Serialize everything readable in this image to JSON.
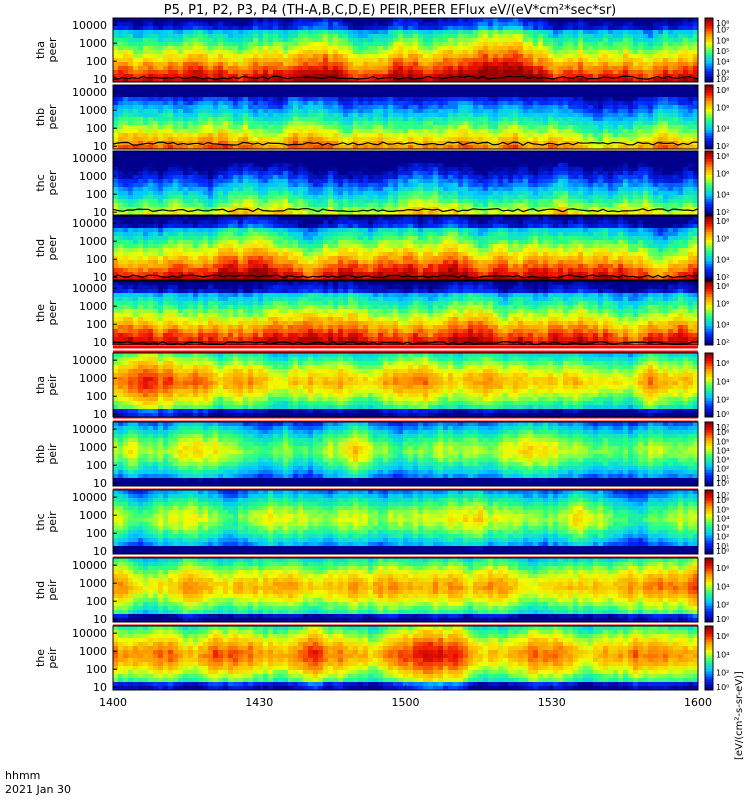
{
  "title": "P5, P1, P2, P3, P4 (TH-A,B,C,D,E) PEIR,PEER EFlux eV/(eV*cm²*sec*sr)",
  "footer": {
    "x_label_line1": "hhmm",
    "x_label_line2": "2021 Jan 30"
  },
  "colorbar_unit_label": "[eV/(cm²-s-sr-eV)]",
  "chart_data": {
    "type": "heatmap",
    "x_axis": {
      "ticks": [
        "1400",
        "1430",
        "1500",
        "1530",
        "1600"
      ],
      "range_minutes": [
        0,
        120
      ]
    },
    "y_axis": {
      "scale": "log",
      "ticks": [
        "10",
        "100",
        "1000",
        "10000"
      ],
      "range_eV": [
        7,
        25000
      ]
    },
    "panels": [
      {
        "probe": "tha",
        "species": "peer",
        "cbar_ticks": [
          "10⁸",
          "10⁷",
          "10⁶",
          "10⁵",
          "10⁴",
          "10³",
          "10²"
        ],
        "cbar_range_exp": [
          2,
          8
        ],
        "base_level": 0.74,
        "thermal_line_eV": 12
      },
      {
        "probe": "thb",
        "species": "peer",
        "cbar_ticks": [
          "10⁸",
          "10⁶",
          "10⁴",
          "10²"
        ],
        "cbar_range_exp": [
          2,
          8
        ],
        "base_level": 0.55,
        "thermal_line_eV": 14
      },
      {
        "probe": "thc",
        "species": "peer",
        "cbar_ticks": [
          "10⁸",
          "10⁶",
          "10⁴",
          "10²"
        ],
        "cbar_range_exp": [
          2,
          8
        ],
        "base_level": 0.4,
        "thermal_line_eV": 13
      },
      {
        "probe": "thd",
        "species": "peer",
        "cbar_ticks": [
          "10⁸",
          "10⁶",
          "10⁴",
          "10²"
        ],
        "cbar_range_exp": [
          2,
          8
        ],
        "base_level": 0.7,
        "thermal_line_eV": 11
      },
      {
        "probe": "the",
        "species": "peer",
        "cbar_ticks": [
          "10⁸",
          "10⁶",
          "10⁴",
          "10²"
        ],
        "cbar_range_exp": [
          2,
          8
        ],
        "base_level": 0.72,
        "thermal_line_eV": 9
      },
      {
        "probe": "tha",
        "species": "peir",
        "cbar_ticks": [
          "10⁶",
          "10⁴",
          "10²",
          "10⁰"
        ],
        "cbar_range_exp": [
          0,
          7
        ],
        "base_level": 0.72
      },
      {
        "probe": "thb",
        "species": "peir",
        "cbar_ticks": [
          "10⁷",
          "10⁶",
          "10⁵",
          "10⁴",
          "10³",
          "10²",
          "10¹",
          "10⁰"
        ],
        "cbar_range_exp": [
          0,
          7
        ],
        "base_level": 0.55
      },
      {
        "probe": "thc",
        "species": "peir",
        "cbar_ticks": [
          "10⁷",
          "10⁶",
          "10⁵",
          "10⁴",
          "10³",
          "10²",
          "10¹",
          "10⁰"
        ],
        "cbar_range_exp": [
          0,
          7
        ],
        "base_level": 0.58
      },
      {
        "probe": "thd",
        "species": "peir",
        "cbar_ticks": [
          "10⁶",
          "10⁴",
          "10²",
          "10⁰"
        ],
        "cbar_range_exp": [
          0,
          7
        ],
        "base_level": 0.72
      },
      {
        "probe": "the",
        "species": "peir",
        "cbar_ticks": [
          "10⁶",
          "10⁴",
          "10²",
          "10⁰"
        ],
        "cbar_range_exp": [
          0,
          7
        ],
        "base_level": 0.76
      }
    ]
  }
}
